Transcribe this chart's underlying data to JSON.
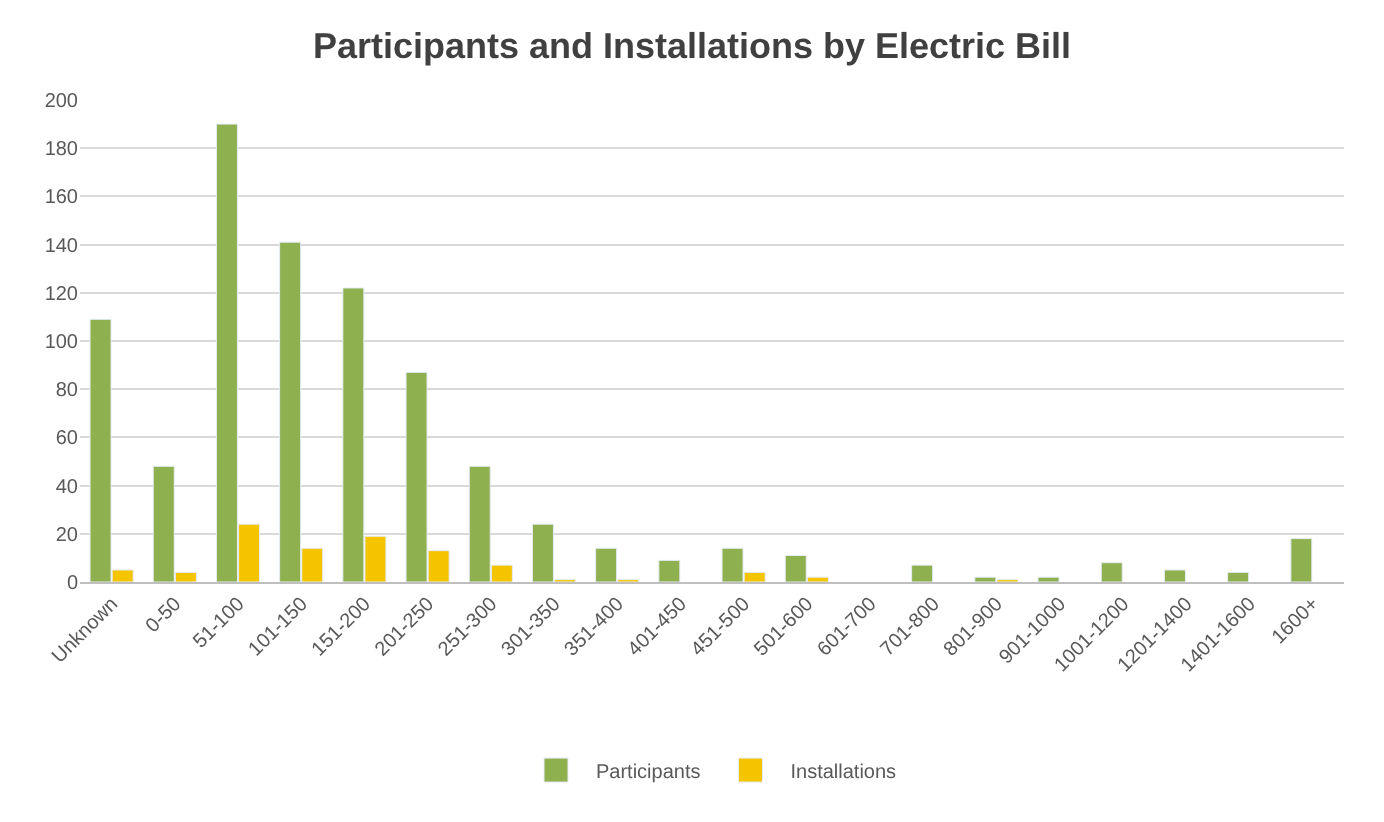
{
  "chart_data": {
    "type": "bar",
    "title": "Participants and Installations by Electric Bill",
    "categories": [
      "Unknown",
      "0-50",
      "51-100",
      "101-150",
      "151-200",
      "201-250",
      "251-300",
      "301-350",
      "351-400",
      "401-450",
      "451-500",
      "501-600",
      "601-700",
      "701-800",
      "801-900",
      "901-1000",
      "1001-1200",
      "1201-1400",
      "1401-1600",
      "1600+"
    ],
    "series": [
      {
        "name": "Participants",
        "color": "#8fb04f",
        "values": [
          109,
          48,
          190,
          141,
          122,
          87,
          48,
          24,
          14,
          9,
          14,
          11,
          null,
          7,
          2,
          2,
          8,
          5,
          4,
          18
        ]
      },
      {
        "name": "Installations",
        "color": "#f5c400",
        "values": [
          5,
          4,
          24,
          14,
          19,
          13,
          7,
          1,
          1,
          null,
          4,
          2,
          null,
          null,
          1,
          null,
          null,
          null,
          null,
          null
        ]
      }
    ],
    "ylim": [
      0,
      200
    ],
    "yticks": [
      0,
      20,
      40,
      60,
      80,
      100,
      120,
      140,
      160,
      180,
      200
    ],
    "grid": "y",
    "legend": "bottom"
  }
}
